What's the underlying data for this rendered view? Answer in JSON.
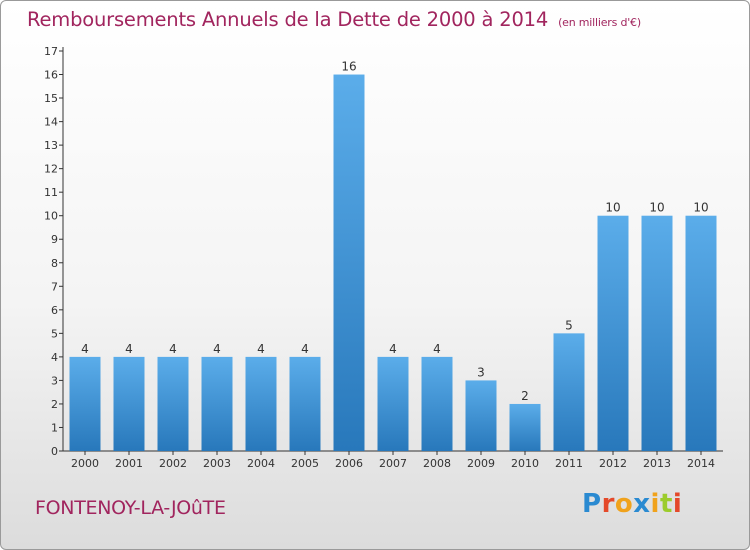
{
  "header": {
    "title": "Remboursements Annuels de la Dette de 2000 à 2014",
    "unit": "(en milliers d'€)"
  },
  "footer": {
    "commune": "FONTENOY-LA-JOûTE",
    "logo": "Proxiti"
  },
  "chart_data": {
    "type": "bar",
    "title": "Remboursements Annuels de la Dette de 2000 à 2014",
    "subtitle": "(en milliers d'€)",
    "xlabel": "",
    "ylabel": "",
    "categories": [
      "2000",
      "2001",
      "2002",
      "2003",
      "2004",
      "2005",
      "2006",
      "2007",
      "2008",
      "2009",
      "2010",
      "2011",
      "2012",
      "2013",
      "2014"
    ],
    "values": [
      4,
      4,
      4,
      4,
      4,
      4,
      16,
      4,
      4,
      3,
      2,
      5,
      10,
      10,
      10
    ],
    "ylim": [
      0,
      17
    ],
    "yticks": [
      0,
      1,
      2,
      3,
      4,
      5,
      6,
      7,
      8,
      9,
      10,
      11,
      12,
      13,
      14,
      15,
      16,
      17
    ],
    "grid": false,
    "legend": "none",
    "colors": {
      "bar_light": "#5badea",
      "bar_dark": "#2878bb",
      "text": "#a1255e",
      "axis": "#333333"
    }
  }
}
